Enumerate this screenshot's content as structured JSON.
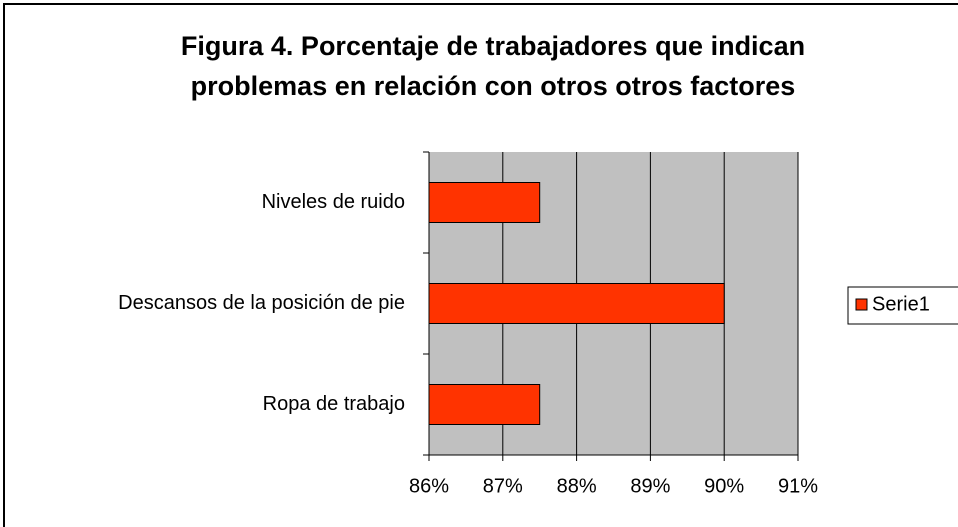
{
  "chart_data": {
    "type": "bar",
    "orientation": "horizontal",
    "title": [
      "Figura 4. Porcentaje de trabajadores que indican",
      "problemas en relación con otros otros factores"
    ],
    "categories": [
      "Niveles de ruido",
      "Descansos de la posición de pie",
      "Ropa de trabajo"
    ],
    "series": [
      {
        "name": "Serie1",
        "color": "#ff3300",
        "values": [
          87.5,
          90,
          87.5
        ]
      }
    ],
    "xlim": [
      86,
      91
    ],
    "xticks": [
      {
        "value": 86,
        "label": "86%"
      },
      {
        "value": 87,
        "label": "87%"
      },
      {
        "value": 88,
        "label": "88%"
      },
      {
        "value": 89,
        "label": "89%"
      },
      {
        "value": 90,
        "label": "90%"
      },
      {
        "value": 91,
        "label": "91%"
      }
    ],
    "grid": true,
    "legend": "right"
  }
}
